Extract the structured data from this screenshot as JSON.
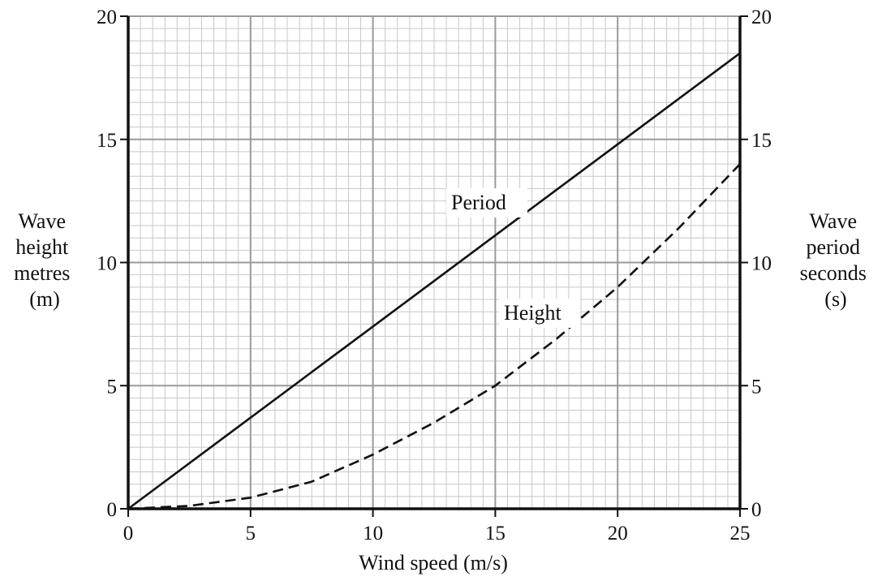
{
  "chart_data": {
    "type": "line",
    "xlabel": "Wind speed (m/s)",
    "ylabel_left": [
      "Wave",
      "height",
      "metres",
      "(m)"
    ],
    "ylabel_right": [
      "Wave",
      "period",
      "seconds",
      "(s)"
    ],
    "xlim": [
      0,
      25
    ],
    "ylim_left": [
      0,
      20
    ],
    "ylim_right": [
      0,
      20
    ],
    "x_ticks": [
      "0",
      "5",
      "10",
      "15",
      "20",
      "25"
    ],
    "y_ticks_left": [
      "0",
      "5",
      "10",
      "15",
      "20"
    ],
    "y_ticks_right": [
      "0",
      "5",
      "10",
      "15",
      "20"
    ],
    "grid": "major and minor",
    "series": [
      {
        "name": "Period",
        "style": "solid",
        "axis": "right",
        "x": [
          0,
          5,
          10,
          15,
          20,
          25
        ],
        "y": [
          0,
          3.7,
          7.4,
          11.1,
          14.8,
          18.5
        ]
      },
      {
        "name": "Height",
        "style": "dashed",
        "axis": "left",
        "x": [
          0,
          2.5,
          5,
          7.5,
          10,
          12.5,
          15,
          17.5,
          20,
          22.5,
          25
        ],
        "y": [
          0,
          0.12,
          0.45,
          1.1,
          2.2,
          3.5,
          5.0,
          6.9,
          9.0,
          11.4,
          14.0
        ]
      }
    ],
    "colors": {
      "line": "#111111",
      "major_grid": "#9a9a9a",
      "minor_grid": "#c8c8c8"
    }
  }
}
